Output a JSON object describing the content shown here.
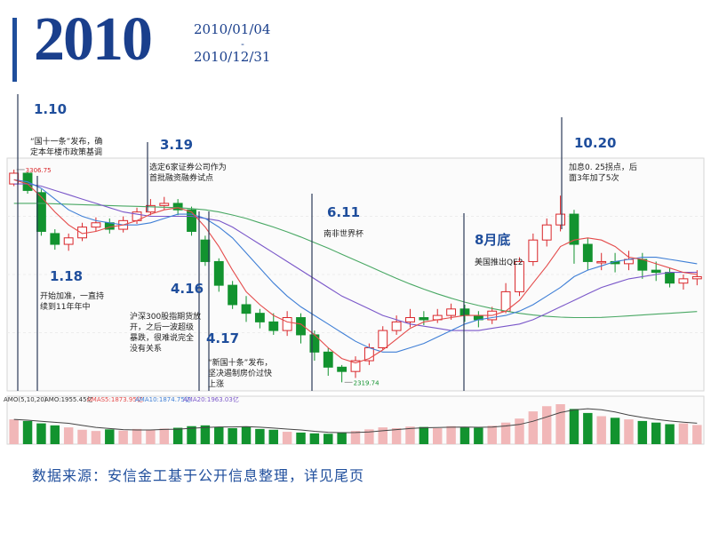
{
  "header": {
    "year": "2010",
    "date_start": "2010/01/04",
    "date_sep": "-",
    "date_end": "2010/12/31"
  },
  "footer": {
    "source": "数据来源：安信金工基于公开信息整理，详见尾页"
  },
  "colors": {
    "up": "#d9262a",
    "down": "#12932f",
    "ma5": "#e44b4b",
    "ma10": "#3f7fd6",
    "ma20": "#7a57c9",
    "ma60": "#49a864",
    "accent": "#1a3f8c",
    "event_line": "#2b3a58"
  },
  "chart_data": {
    "type": "candlestick",
    "period": [
      "2010/01/04",
      "2010/12/31"
    ],
    "x_unit": "trading week",
    "high_label": "3306.75",
    "low_label": "2319.74",
    "moving_averages": [
      "MA5",
      "MA10",
      "MA20",
      "MA60"
    ],
    "ohlc": [
      [
        0,
        3240,
        3290,
        3306.75,
        3230
      ],
      [
        1,
        3290,
        3210,
        3295,
        3195
      ],
      [
        2,
        3200,
        3020,
        3215,
        3000
      ],
      [
        3,
        3010,
        2960,
        3030,
        2935
      ],
      [
        4,
        2960,
        2990,
        3010,
        2930
      ],
      [
        5,
        2990,
        3040,
        3060,
        2975
      ],
      [
        6,
        3040,
        3060,
        3085,
        3020
      ],
      [
        7,
        3060,
        3030,
        3080,
        3010
      ],
      [
        8,
        3030,
        3070,
        3090,
        3015
      ],
      [
        9,
        3070,
        3110,
        3130,
        3055
      ],
      [
        10,
        3110,
        3140,
        3170,
        3095
      ],
      [
        11,
        3140,
        3150,
        3180,
        3120
      ],
      [
        12,
        3150,
        3120,
        3170,
        3095
      ],
      [
        13,
        3120,
        3020,
        3135,
        3000
      ],
      [
        14,
        2980,
        2880,
        3000,
        2860
      ],
      [
        15,
        2880,
        2770,
        2895,
        2740
      ],
      [
        16,
        2770,
        2680,
        2790,
        2660
      ],
      [
        17,
        2680,
        2640,
        2720,
        2600
      ],
      [
        18,
        2640,
        2600,
        2660,
        2570
      ],
      [
        19,
        2600,
        2560,
        2640,
        2540
      ],
      [
        20,
        2560,
        2620,
        2650,
        2535
      ],
      [
        21,
        2620,
        2540,
        2640,
        2500
      ],
      [
        22,
        2540,
        2460,
        2560,
        2420
      ],
      [
        23,
        2460,
        2390,
        2480,
        2350
      ],
      [
        24,
        2390,
        2370,
        2400,
        2319.74
      ],
      [
        25,
        2370,
        2420,
        2440,
        2340
      ],
      [
        26,
        2420,
        2480,
        2500,
        2400
      ],
      [
        27,
        2480,
        2560,
        2580,
        2470
      ],
      [
        28,
        2560,
        2600,
        2630,
        2540
      ],
      [
        29,
        2600,
        2620,
        2660,
        2575
      ],
      [
        30,
        2620,
        2610,
        2650,
        2585
      ],
      [
        31,
        2610,
        2630,
        2660,
        2595
      ],
      [
        32,
        2630,
        2660,
        2685,
        2610
      ],
      [
        33,
        2660,
        2630,
        2680,
        2600
      ],
      [
        34,
        2630,
        2610,
        2650,
        2575
      ],
      [
        35,
        2610,
        2650,
        2670,
        2590
      ],
      [
        36,
        2650,
        2740,
        2780,
        2640
      ],
      [
        37,
        2740,
        2880,
        2900,
        2720
      ],
      [
        38,
        2880,
        2980,
        3010,
        2860
      ],
      [
        39,
        2980,
        3050,
        3080,
        2950
      ],
      [
        40,
        3050,
        3100,
        3186,
        3020
      ],
      [
        41,
        3100,
        2960,
        3120,
        2870
      ],
      [
        42,
        2960,
        2880,
        2990,
        2840
      ],
      [
        43,
        2880,
        2880,
        2920,
        2840
      ],
      [
        44,
        2880,
        2870,
        2920,
        2830
      ],
      [
        45,
        2870,
        2890,
        2930,
        2840
      ],
      [
        46,
        2890,
        2840,
        2920,
        2800
      ],
      [
        47,
        2840,
        2830,
        2880,
        2790
      ],
      [
        48,
        2830,
        2780,
        2850,
        2760
      ],
      [
        49,
        2780,
        2800,
        2820,
        2750
      ],
      [
        50,
        2800,
        2810,
        2840,
        2770
      ]
    ],
    "ma": {
      "MA5": [
        3260,
        3240,
        3180,
        3110,
        3050,
        3010,
        3020,
        3040,
        3050,
        3070,
        3100,
        3120,
        3130,
        3110,
        3040,
        2950,
        2840,
        2740,
        2680,
        2630,
        2600,
        2590,
        2540,
        2480,
        2430,
        2410,
        2430,
        2470,
        2520,
        2570,
        2600,
        2610,
        2620,
        2630,
        2630,
        2630,
        2650,
        2700,
        2780,
        2860,
        2950,
        2980,
        2990,
        2980,
        2950,
        2900,
        2890,
        2870,
        2850,
        2830,
        2820
      ],
      "MA10": [
        3260,
        3250,
        3220,
        3170,
        3120,
        3090,
        3070,
        3060,
        3050,
        3050,
        3060,
        3080,
        3100,
        3100,
        3080,
        3040,
        2990,
        2920,
        2850,
        2780,
        2720,
        2670,
        2630,
        2590,
        2550,
        2510,
        2480,
        2460,
        2460,
        2480,
        2500,
        2530,
        2560,
        2590,
        2610,
        2620,
        2630,
        2650,
        2680,
        2720,
        2760,
        2810,
        2840,
        2860,
        2880,
        2890,
        2900,
        2900,
        2890,
        2880,
        2870
      ],
      "MA20": [
        3240,
        3240,
        3230,
        3210,
        3190,
        3170,
        3150,
        3130,
        3110,
        3100,
        3090,
        3090,
        3090,
        3090,
        3080,
        3070,
        3040,
        3000,
        2960,
        2920,
        2880,
        2840,
        2800,
        2760,
        2720,
        2690,
        2660,
        2630,
        2610,
        2590,
        2580,
        2570,
        2560,
        2560,
        2560,
        2570,
        2580,
        2590,
        2610,
        2640,
        2670,
        2700,
        2730,
        2760,
        2780,
        2800,
        2810,
        2820,
        2830,
        2830,
        2830
      ],
      "MA60": [
        3150,
        3150,
        3150,
        3148,
        3146,
        3144,
        3142,
        3140,
        3138,
        3136,
        3134,
        3132,
        3130,
        3126,
        3120,
        3110,
        3096,
        3080,
        3060,
        3040,
        3018,
        2994,
        2968,
        2942,
        2914,
        2886,
        2858,
        2830,
        2802,
        2776,
        2752,
        2730,
        2710,
        2692,
        2676,
        2662,
        2650,
        2640,
        2632,
        2626,
        2622,
        2620,
        2620,
        2621,
        2624,
        2628,
        2632,
        2636,
        2640,
        2644,
        2648
      ]
    },
    "volume_legend": {
      "label": "AMO(5,10,20)",
      "amo": "AMO:1955.45亿",
      "amas5": "AMAS5:1873.95亿",
      "ama10": "AMA10:1874.75亿",
      "ama20": "AMA20:1963.03亿"
    },
    "volume": [
      0.62,
      0.58,
      0.52,
      0.47,
      0.42,
      0.36,
      0.33,
      0.37,
      0.34,
      0.38,
      0.36,
      0.39,
      0.41,
      0.45,
      0.47,
      0.43,
      0.4,
      0.44,
      0.38,
      0.36,
      0.31,
      0.29,
      0.27,
      0.26,
      0.3,
      0.33,
      0.37,
      0.42,
      0.4,
      0.44,
      0.43,
      0.4,
      0.45,
      0.42,
      0.41,
      0.46,
      0.54,
      0.64,
      0.82,
      0.95,
      1.0,
      0.88,
      0.78,
      0.7,
      0.66,
      0.62,
      0.58,
      0.54,
      0.5,
      0.52,
      0.48
    ],
    "annotations": [
      {
        "date": "1.10",
        "text": [
          "“国十一条”发布，确",
          "定本年楼市政策基调"
        ],
        "candle": 0
      },
      {
        "date": "1.18",
        "text": [
          "开始加准，一直持",
          "续到11年年中"
        ],
        "candle": 2
      },
      {
        "date": "3.19",
        "text": [
          "选定6家证券公司作为",
          "首批融资融券试点"
        ],
        "candle": 12
      },
      {
        "date": "4.16",
        "text": [
          "沪深300股指期货放",
          "开，之后一波超级",
          "暴跌，很难说完全",
          "没有关系"
        ],
        "candle": 13
      },
      {
        "date": "4.17",
        "text": [
          "“新国十条”发布，",
          "坚决遏制房价过快",
          "上涨"
        ],
        "candle": 13
      },
      {
        "date": "6.11",
        "text": [
          "南非世界杯"
        ],
        "candle": 20
      },
      {
        "date": "8月底",
        "text": [
          "美国推出QE2"
        ],
        "candle": 32
      },
      {
        "date": "10.20",
        "text": [
          "加息0. 25拐点，后",
          "面3年加了5次"
        ],
        "candle": 40
      }
    ]
  }
}
